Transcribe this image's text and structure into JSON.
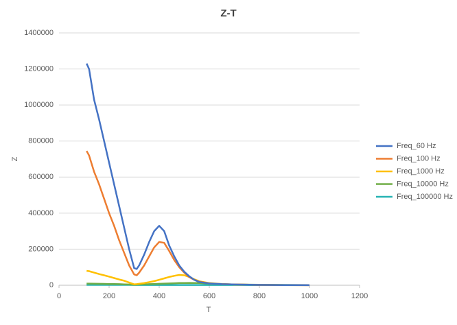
{
  "chart_data": {
    "type": "line",
    "title": "Z-T",
    "x_label": "T",
    "y_label": "Z",
    "x": [
      110,
      120,
      140,
      160,
      180,
      200,
      220,
      240,
      260,
      280,
      300,
      310,
      320,
      340,
      360,
      380,
      400,
      420,
      440,
      460,
      480,
      500,
      520,
      540,
      560,
      600,
      650,
      700,
      800,
      900,
      1000
    ],
    "series": [
      {
        "name": "Freq_60 Hz",
        "color": "#4472c4",
        "values": [
          1230000,
          1200000,
          1030000,
          920000,
          800000,
          680000,
          560000,
          440000,
          320000,
          200000,
          95000,
          90000,
          110000,
          170000,
          240000,
          300000,
          330000,
          300000,
          220000,
          160000,
          110000,
          75000,
          50000,
          30000,
          18000,
          10000,
          6000,
          4000,
          2000,
          1000,
          500
        ]
      },
      {
        "name": "Freq_100 Hz",
        "color": "#ed7d31",
        "values": [
          745000,
          720000,
          630000,
          560000,
          480000,
          400000,
          330000,
          250000,
          180000,
          110000,
          60000,
          55000,
          70000,
          110000,
          160000,
          210000,
          240000,
          235000,
          190000,
          140000,
          100000,
          70000,
          45000,
          30000,
          20000,
          10000,
          6000,
          4000,
          2000,
          1000,
          500
        ]
      },
      {
        "name": "Freq_1000 Hz",
        "color": "#ffc000",
        "values": [
          80000,
          78000,
          70000,
          62000,
          55000,
          48000,
          40000,
          32000,
          25000,
          15000,
          5000,
          6000,
          8000,
          12000,
          17000,
          23000,
          30000,
          38000,
          46000,
          52000,
          57000,
          55000,
          46000,
          33000,
          22000,
          12000,
          7000,
          4000,
          2000,
          1000,
          500
        ]
      },
      {
        "name": "Freq_10000 Hz",
        "color": "#70ad47",
        "values": [
          9000,
          9000,
          8500,
          8000,
          7500,
          7000,
          6500,
          6000,
          5000,
          4000,
          3000,
          3500,
          4000,
          5000,
          6000,
          7000,
          8000,
          9000,
          10000,
          11000,
          12000,
          12500,
          13000,
          12500,
          12000,
          9000,
          6000,
          4000,
          3000,
          2000,
          1000
        ]
      },
      {
        "name": "Freq_100000 Hz",
        "color": "#26b3b3",
        "values": [
          2000,
          2000,
          2000,
          2000,
          2000,
          2000,
          2000,
          2000,
          2000,
          2000,
          1500,
          1500,
          1500,
          1500,
          1500,
          1500,
          1500,
          1500,
          1500,
          1500,
          1500,
          1500,
          1500,
          1500,
          1500,
          1500,
          1500,
          1500,
          1000,
          1000,
          1000
        ]
      }
    ],
    "xlim": [
      0,
      1200
    ],
    "xticks": [
      0,
      200,
      400,
      600,
      800,
      1000,
      1200
    ],
    "ylim": [
      0,
      1400000
    ],
    "yticks": [
      0,
      200000,
      400000,
      600000,
      800000,
      1000000,
      1200000,
      1400000
    ],
    "grid": true,
    "legend": "right"
  }
}
